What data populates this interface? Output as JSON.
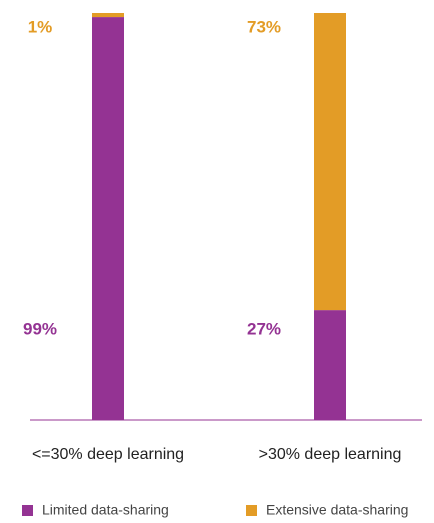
{
  "chart_data": {
    "type": "stacked_bar",
    "categories": [
      "<=30% deep learning",
      ">30% deep learning"
    ],
    "series": [
      {
        "name": "Limited data-sharing",
        "color": "#943393",
        "values": [
          99,
          27
        ],
        "value_labels": [
          "99%",
          "27%"
        ]
      },
      {
        "name": "Extensive data-sharing",
        "color": "#e39c26",
        "values": [
          1,
          73
        ],
        "value_labels": [
          "1%",
          "73%"
        ]
      }
    ],
    "ylim": [
      0,
      100
    ]
  }
}
